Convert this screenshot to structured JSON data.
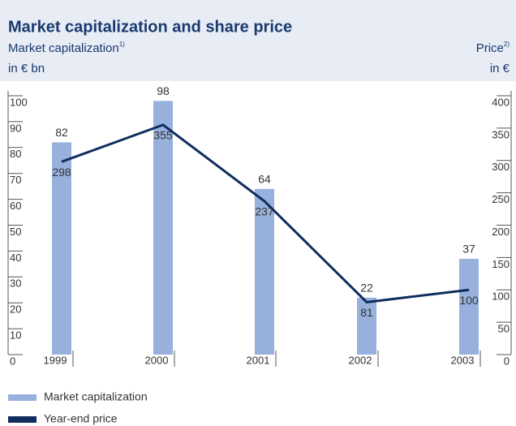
{
  "chart_data": {
    "type": "bar",
    "title": "Market capitalization and share price",
    "y_label": "Market capitalization",
    "y_label_note": "1)",
    "y_unit": "in € bn",
    "y2_label": "Price",
    "y2_label_note": "2)",
    "y2_unit": "in €",
    "categories": [
      "1999",
      "2000",
      "2001",
      "2002",
      "2003"
    ],
    "series": [
      {
        "name": "Market capitalization",
        "type": "bar",
        "color": "#97b1dc",
        "values": [
          82,
          98,
          64,
          22,
          37
        ]
      },
      {
        "name": "Year-end price",
        "type": "line",
        "axis": "y2",
        "color": "#0f2d5e",
        "values": [
          298,
          355,
          237,
          81,
          100
        ]
      }
    ],
    "ylim": [
      0,
      100
    ],
    "yticks": [
      0,
      10,
      20,
      30,
      40,
      50,
      60,
      70,
      80,
      90,
      100
    ],
    "y2lim": [
      0,
      400
    ],
    "y2ticks": [
      0,
      50,
      100,
      150,
      200,
      250,
      300,
      350,
      400
    ]
  }
}
